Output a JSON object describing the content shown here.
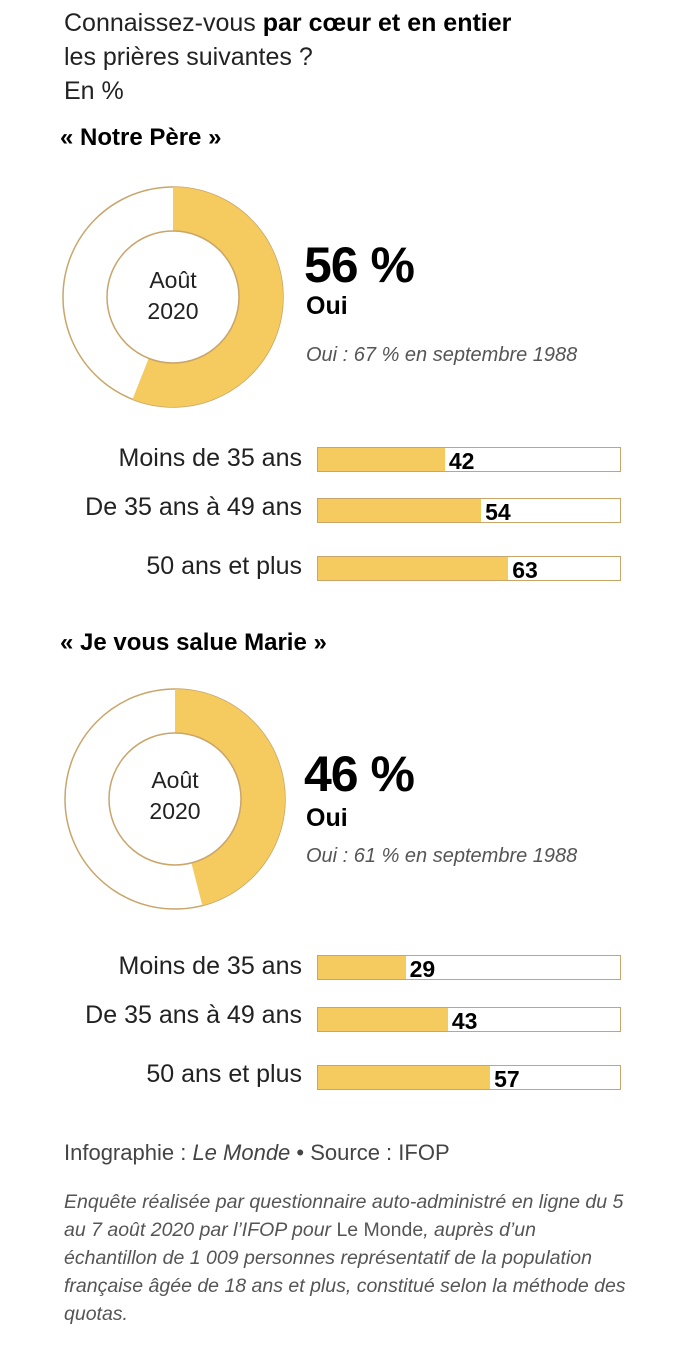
{
  "header": {
    "line1_plain": "Connaissez-vous ",
    "line1_bold": "par cœur et en entier",
    "line2": "les prières suivantes ?",
    "unit": "En %"
  },
  "colors": {
    "fill": "#f5ca5e",
    "outline": "#c9a56a",
    "text": "#222222"
  },
  "chart_data": [
    {
      "type": "pie",
      "title": "« Notre Père »",
      "center_label_1": "Août",
      "center_label_2": "2020",
      "value": 56,
      "value_text": "56 %",
      "value_label": "Oui",
      "note": "Oui : 67 % en septembre 1988",
      "age_groups": {
        "type": "bar",
        "categories": [
          "Moins de 35 ans",
          "De 35 ans à 49 ans",
          "50 ans et plus"
        ],
        "values": [
          42,
          54,
          63
        ],
        "xlim": [
          0,
          100
        ]
      }
    },
    {
      "type": "pie",
      "title": "« Je vous salue Marie »",
      "center_label_1": "Août",
      "center_label_2": "2020",
      "value": 46,
      "value_text": "46 %",
      "value_label": "Oui",
      "note": "Oui : 61 % en septembre 1988",
      "age_groups": {
        "type": "bar",
        "categories": [
          "Moins de 35 ans",
          "De 35 ans à 49 ans",
          "50 ans et plus"
        ],
        "values": [
          29,
          43,
          57
        ],
        "xlim": [
          0,
          100
        ]
      }
    }
  ],
  "footer": {
    "credit_prefix": "Infographie : ",
    "credit_name": "Le Monde",
    "credit_sep": " • ",
    "source": "Source : IFOP",
    "method_1": "Enquête réalisée par questionnaire auto-administré en ligne du 5 au 7 août 2020 par l’IFOP pour ",
    "method_name": "Le Monde",
    "method_2": ", auprès d’un échantillon de 1 009 personnes représentatif de la population française âgée de 18 ans et plus, constitué selon la méthode des quotas."
  }
}
